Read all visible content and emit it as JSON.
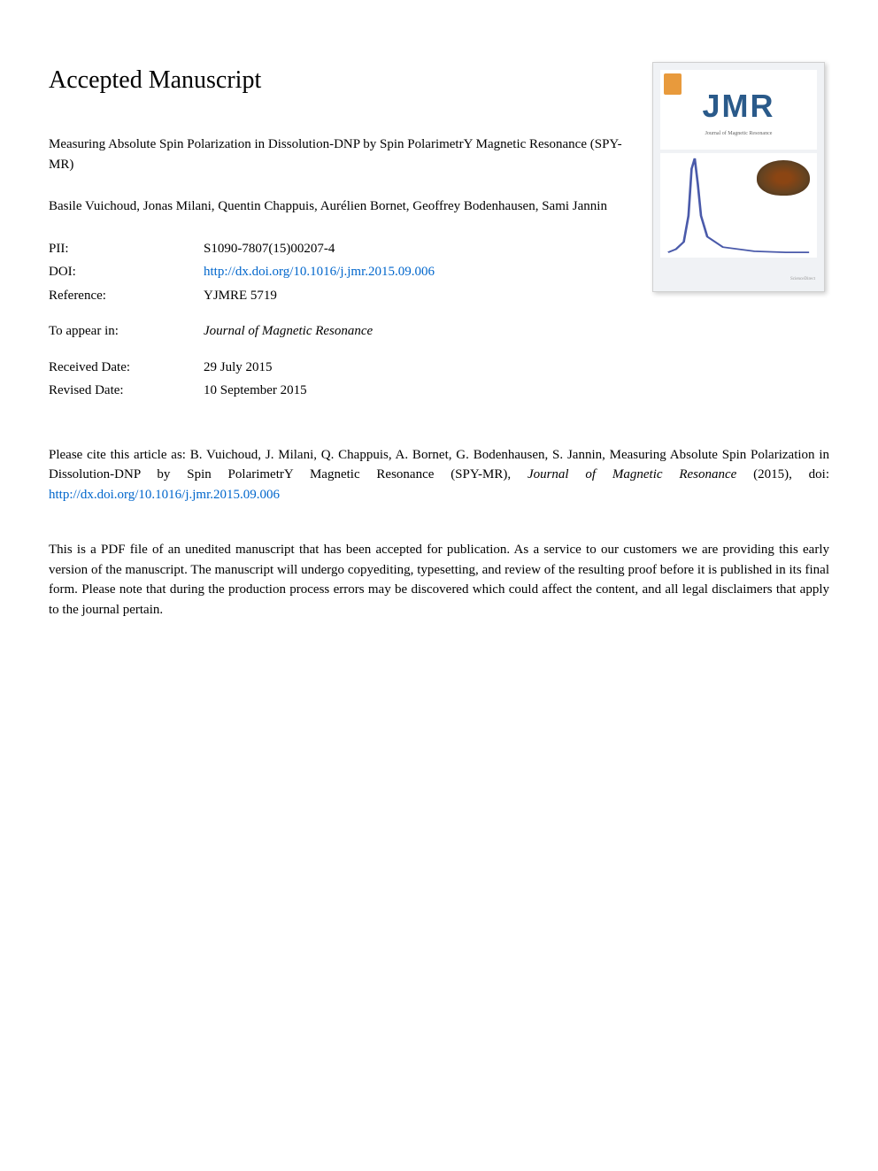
{
  "header": {
    "page_title": "Accepted Manuscript"
  },
  "article": {
    "title": "Measuring Absolute Spin Polarization in Dissolution-DNP by Spin PolarimetrY Magnetic Resonance (SPY-MR)",
    "authors": "Basile Vuichoud, Jonas Milani, Quentin Chappuis, Aurélien Bornet, Geoffrey Bodenhausen, Sami Jannin"
  },
  "metadata": {
    "pii_label": "PII:",
    "pii_value": "S1090-7807(15)00207-4",
    "doi_label": "DOI:",
    "doi_value": "http://dx.doi.org/10.1016/j.jmr.2015.09.006",
    "reference_label": "Reference:",
    "reference_value": "YJMRE 5719",
    "to_appear_label": "To appear in:",
    "to_appear_value": "Journal of Magnetic Resonance",
    "received_label": "Received Date:",
    "received_value": "29 July 2015",
    "revised_label": "Revised Date:",
    "revised_value": "10 September 2015"
  },
  "citation": {
    "prefix": "Please cite this article as: B. Vuichoud, J. Milani, Q. Chappuis, A. Bornet, G. Bodenhausen, S. Jannin, Measuring Absolute Spin Polarization in Dissolution-DNP by Spin PolarimetrY Magnetic Resonance (SPY-MR), ",
    "journal": "Journal of Magnetic Resonance",
    "year": " (2015), doi: ",
    "doi_link": "http://dx.doi.org/10.1016/j.jmr.2015.09.006"
  },
  "disclaimer": {
    "text": "This is a PDF file of an unedited manuscript that has been accepted for publication. As a service to our customers we are providing this early version of the manuscript. The manuscript will undergo copyediting, typesetting, and review of the resulting proof before it is published in its final form. Please note that during the production process errors may be discovered which could affect the content, and all legal disclaimers that apply to the journal pertain."
  },
  "cover": {
    "journal_abbrev": "JMR",
    "journal_subtitle": "Journal of Magnetic Resonance",
    "footer_text": "ScienceDirect",
    "graph": {
      "type": "line",
      "x_range": [
        0,
        100
      ],
      "y_range": [
        0,
        1
      ],
      "line_color": "#4a5aaa",
      "line_width": 1.5,
      "background_color": "#ffffff",
      "points": [
        [
          5,
          0.05
        ],
        [
          10,
          0.08
        ],
        [
          15,
          0.15
        ],
        [
          18,
          0.4
        ],
        [
          20,
          0.85
        ],
        [
          22,
          0.95
        ],
        [
          24,
          0.7
        ],
        [
          26,
          0.4
        ],
        [
          30,
          0.2
        ],
        [
          40,
          0.1
        ],
        [
          60,
          0.06
        ],
        [
          80,
          0.05
        ],
        [
          95,
          0.05
        ]
      ]
    }
  },
  "colors": {
    "text": "#000000",
    "link": "#0066cc",
    "background": "#ffffff",
    "cover_bg": "#f0f2f5",
    "jmr_color": "#2a5a8a"
  }
}
